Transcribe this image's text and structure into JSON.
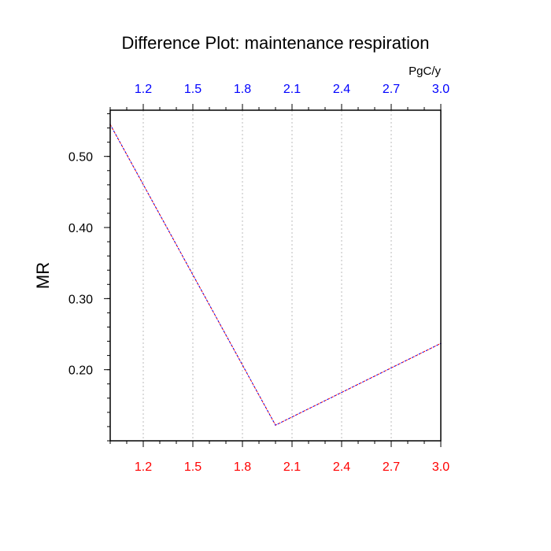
{
  "chart_data": {
    "type": "line",
    "title": "Difference Plot: maintenance respiration",
    "xlabel": "",
    "ylabel": "MR",
    "top_axis_unit": "PgC/y",
    "xlim": [
      1.0,
      3.0
    ],
    "ylim": [
      0.1,
      0.565
    ],
    "x_ticks": [
      "1.2",
      "1.5",
      "1.8",
      "2.1",
      "2.4",
      "2.7",
      "3.0"
    ],
    "y_ticks": [
      "0.50",
      "0.40",
      "0.30",
      "0.20"
    ],
    "x_minor_step": 0.1,
    "y_minor_step": 0.02,
    "grid": "vertical dotted gridlines at major x ticks",
    "legend": "none",
    "colors": {
      "line": "#7b1fd0",
      "bottom_tick_labels": "#ff0000",
      "top_tick_labels": "#0000ff",
      "grid": "#bbbbbb"
    },
    "series": [
      {
        "x": [
          1.0,
          2.0,
          3.0
        ],
        "y": [
          0.545,
          0.122,
          0.237
        ]
      }
    ]
  }
}
